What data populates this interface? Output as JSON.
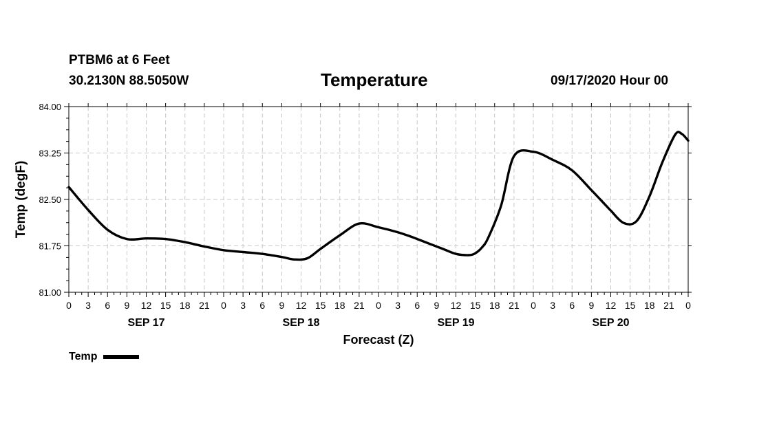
{
  "header": {
    "station": "PTBM6 at 6 Feet",
    "coords": "30.2130N 88.5050W",
    "title": "Temperature",
    "timestamp": "09/17/2020 Hour 00"
  },
  "chart_data": {
    "type": "line",
    "title": "Temperature",
    "xlabel": "Forecast (Z)",
    "ylabel": "Temp (degF)",
    "ylim": [
      81.0,
      84.0
    ],
    "yticks": [
      "81.00",
      "81.75",
      "82.50",
      "83.25",
      "84.00"
    ],
    "xlim_hours": [
      0,
      96
    ],
    "xtick_step_hours": 3,
    "xtick_labels": [
      "0",
      "3",
      "6",
      "9",
      "12",
      "15",
      "18",
      "21",
      "0",
      "3",
      "6",
      "9",
      "12",
      "15",
      "18",
      "21",
      "0",
      "3",
      "6",
      "9",
      "12",
      "15",
      "18",
      "21",
      "0",
      "3",
      "6",
      "9",
      "12",
      "15",
      "18",
      "21",
      "0"
    ],
    "day_labels": [
      {
        "hour": 12,
        "label": "SEP 17"
      },
      {
        "hour": 36,
        "label": "SEP 18"
      },
      {
        "hour": 60,
        "label": "SEP 19"
      },
      {
        "hour": 84,
        "label": "SEP 20"
      }
    ],
    "grid": true,
    "legend": "bottom-left",
    "series": [
      {
        "name": "Temp",
        "color": "#000000",
        "x": [
          0,
          3,
          6,
          9,
          12,
          15,
          18,
          21,
          24,
          27,
          30,
          33,
          35,
          37,
          39,
          42,
          45,
          48,
          51,
          53,
          54,
          56,
          58,
          60,
          62,
          63,
          64,
          65,
          67,
          69,
          72,
          75,
          78,
          81,
          83,
          84,
          86,
          88,
          90,
          92,
          94,
          95,
          96
        ],
        "values": [
          82.7,
          82.33,
          82.01,
          81.86,
          81.87,
          81.86,
          81.81,
          81.74,
          81.68,
          81.65,
          81.62,
          81.57,
          81.53,
          81.55,
          81.7,
          81.92,
          82.11,
          82.05,
          81.97,
          81.9,
          81.86,
          81.78,
          81.7,
          81.62,
          81.6,
          81.63,
          81.72,
          81.88,
          82.4,
          83.2,
          83.27,
          83.14,
          82.97,
          82.65,
          82.43,
          82.32,
          82.12,
          82.15,
          82.55,
          83.1,
          83.55,
          83.56,
          83.45
        ]
      }
    ]
  },
  "legend": {
    "label": "Temp"
  }
}
